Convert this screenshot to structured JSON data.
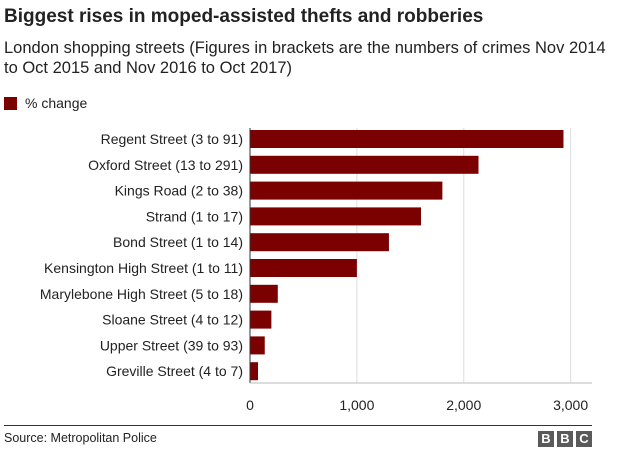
{
  "header": {
    "title": "Biggest rises in moped-assisted thefts and robberies",
    "subtitle": "London shopping streets (Figures in brackets are the numbers of crimes Nov 2014 to Oct 2015 and Nov 2016 to Oct 2017)"
  },
  "legend": {
    "label": "% change",
    "color": "#7b0000"
  },
  "chart_data": {
    "type": "bar",
    "orientation": "horizontal",
    "categories": [
      "Regent Street (3 to 91)",
      "Oxford Street (13 to 291)",
      "Kings Road (2 to 38)",
      "Strand (1 to 17)",
      "Bond Street (1 to 14)",
      "Kensington High Street (1 to 11)",
      "Marylebone High Street (5 to 18)",
      "Sloane Street (4 to 12)",
      "Upper Street (39 to 93)",
      "Greville Street (4 to 7)"
    ],
    "series": [
      {
        "name": "% change",
        "color": "#7b0000",
        "values": [
          2933,
          2138,
          1800,
          1600,
          1300,
          1000,
          260,
          200,
          138,
          75
        ]
      }
    ],
    "xlim": [
      0,
      3200
    ],
    "xticks": [
      0,
      1000,
      2000,
      3000
    ],
    "xtick_labels": [
      "0",
      "1,000",
      "2,000",
      "3,000"
    ],
    "grid": true,
    "legend_position": "top-left"
  },
  "footer": {
    "source": "Source: Metropolitan Police",
    "logo": [
      "B",
      "B",
      "C"
    ]
  }
}
